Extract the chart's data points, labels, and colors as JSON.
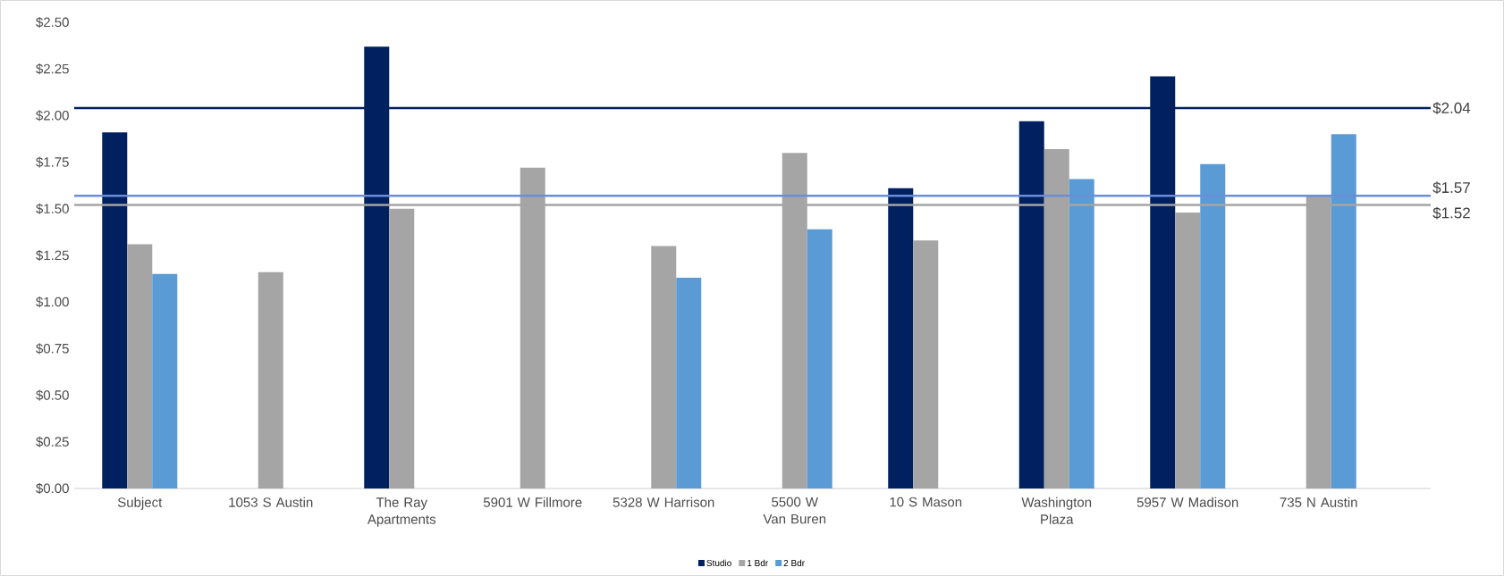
{
  "chart_data": {
    "type": "bar",
    "categories": [
      "Subject",
      "1053 S Austin",
      "The Ray Apartments",
      "5901 W Fillmore",
      "5328 W Harrison",
      "5500 W Van Buren",
      "10 S Mason",
      "Washington Plaza",
      "5957 W Madison",
      "735 N Austin"
    ],
    "series": [
      {
        "name": "Studio",
        "color": "#002060",
        "values": [
          1.91,
          null,
          2.37,
          null,
          null,
          null,
          1.61,
          1.97,
          2.21,
          null
        ]
      },
      {
        "name": "1 Bdr",
        "color": "#a5a5a5",
        "values": [
          1.31,
          1.16,
          1.5,
          1.72,
          1.3,
          1.8,
          1.33,
          1.82,
          1.48,
          1.57
        ]
      },
      {
        "name": "2 Bdr",
        "color": "#5b9bd5",
        "values": [
          1.15,
          null,
          null,
          null,
          1.13,
          1.39,
          null,
          1.66,
          1.74,
          1.9
        ]
      }
    ],
    "ylim": [
      0,
      2.5
    ],
    "yticks": [
      {
        "value": 0,
        "label": "$0.00"
      },
      {
        "value": 0.25,
        "label": "$0.25"
      },
      {
        "value": 0.5,
        "label": "$0.50"
      },
      {
        "value": 0.75,
        "label": "$0.75"
      },
      {
        "value": 1,
        "label": "$1.00"
      },
      {
        "value": 1.25,
        "label": "$1.25"
      },
      {
        "value": 1.5,
        "label": "$1.50"
      },
      {
        "value": 1.75,
        "label": "$1.75"
      },
      {
        "value": 2,
        "label": "$2.00"
      },
      {
        "value": 2.25,
        "label": "$2.25"
      },
      {
        "value": 2.5,
        "label": "$2.50"
      }
    ],
    "ref_lines": [
      {
        "axis": "y",
        "value": 2.04,
        "label": "$2.04",
        "color": "#002060"
      },
      {
        "axis": "y",
        "value": 1.57,
        "label": "$1.57",
        "color": "#6a8fd8"
      },
      {
        "axis": "y",
        "value": 1.52,
        "label": "$1.52",
        "color": "#a5a5a5"
      }
    ],
    "legend": "bottom",
    "grid": false
  }
}
